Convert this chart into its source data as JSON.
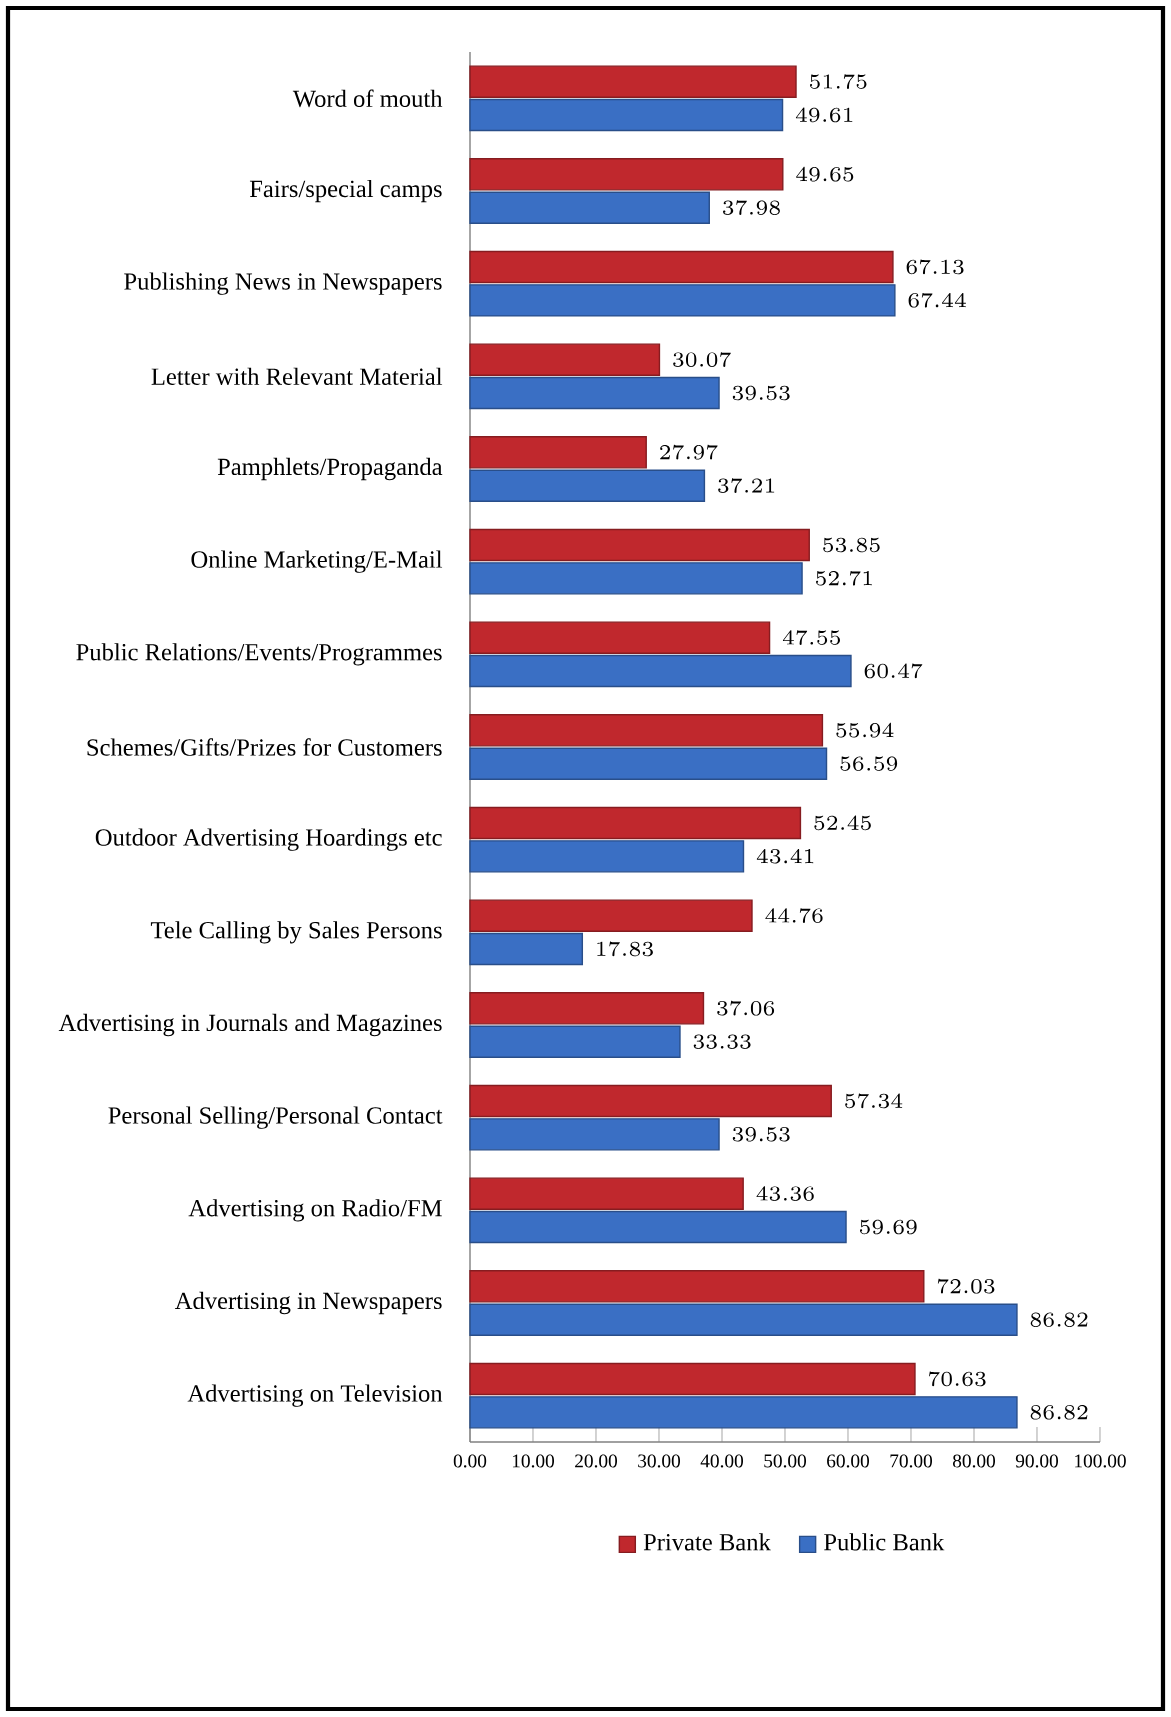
{
  "chart_data": {
    "type": "bar",
    "orientation": "horizontal",
    "categories": [
      "Word of mouth",
      "Fairs/special camps",
      "Publishing News in Newspapers",
      "Letter with Relevant Material",
      "Pamphlets/Propaganda",
      "Online Marketing/E-Mail",
      "Public Relations/Events/Programmes",
      "Schemes/Gifts/Prizes for Customers",
      "Outdoor Advertising Hoardings etc",
      "Tele Calling by Sales Persons",
      "Advertising in Journals and Magazines",
      "Personal Selling/Personal Contact",
      "Advertising on Radio/FM",
      "Advertising in Newspapers",
      "Advertising on Television"
    ],
    "series": [
      {
        "name": "Private Bank",
        "color": "#c0282d",
        "values": [
          51.75,
          49.65,
          67.13,
          30.07,
          27.97,
          53.85,
          47.55,
          55.94,
          52.45,
          44.76,
          37.06,
          57.34,
          43.36,
          72.03,
          70.63
        ]
      },
      {
        "name": "Public Bank",
        "color": "#3a6fc4",
        "values": [
          49.61,
          37.98,
          67.44,
          39.53,
          37.21,
          52.71,
          60.47,
          56.59,
          43.41,
          17.83,
          33.33,
          39.53,
          59.69,
          86.82,
          86.82
        ]
      }
    ],
    "xlim": [
      0,
      100
    ],
    "xticks": [
      {
        "value": 0,
        "label": "0.00"
      },
      {
        "value": 10,
        "label": "10.00"
      },
      {
        "value": 20,
        "label": "20.00"
      },
      {
        "value": 30,
        "label": "30.00"
      },
      {
        "value": 40,
        "label": "40.00"
      },
      {
        "value": 50,
        "label": "50.00"
      },
      {
        "value": 60,
        "label": "60.00"
      },
      {
        "value": 70,
        "label": "70.00"
      },
      {
        "value": 80,
        "label": "80.00"
      },
      {
        "value": 90,
        "label": "90.00"
      },
      {
        "value": 100,
        "label": "100.00"
      }
    ],
    "data_labels": true,
    "legend": "bottom"
  }
}
